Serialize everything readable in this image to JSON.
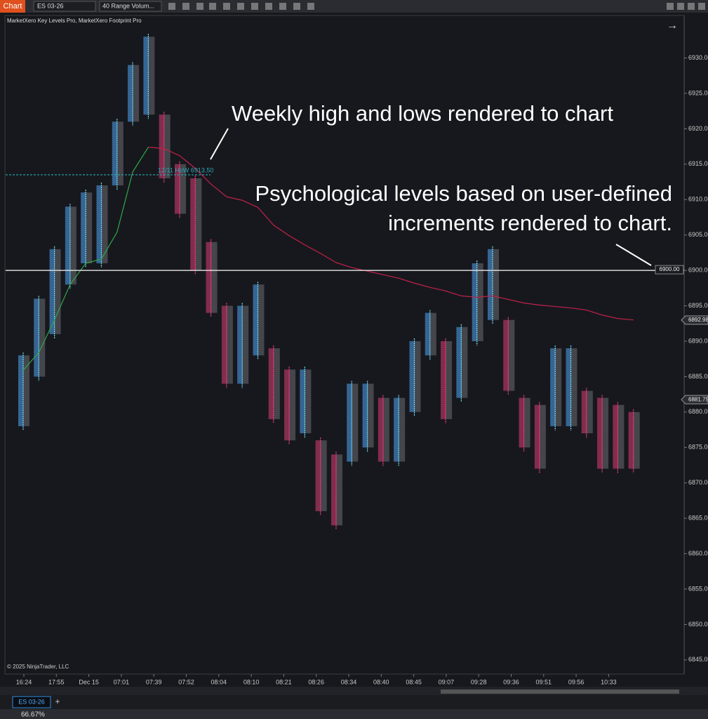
{
  "toolbar": {
    "app_tab": "Chart",
    "instrument": "ES 03-26",
    "bar_type": "40 Range Volum..."
  },
  "indicators": "MarketXero Key Levels Pro, MarketXero Footprint Pro",
  "copyright": "© 2025 NinjaTrader, LLC",
  "bottom_tab": "ES 03-26",
  "status_zoom": "66.67%",
  "chart_data": {
    "type": "footprint",
    "ylim": [
      6843,
      6936
    ],
    "yticks": [
      {
        "value": 6930,
        "label": "6930.00"
      },
      {
        "value": 6925,
        "label": "6925.00"
      },
      {
        "value": 6920,
        "label": "6920.00"
      },
      {
        "value": 6915,
        "label": "6915.00"
      },
      {
        "value": 6910,
        "label": "6910.00"
      },
      {
        "value": 6905,
        "label": "6905.00"
      },
      {
        "value": 6900,
        "label": "6900.00"
      },
      {
        "value": 6895,
        "label": "6895.00"
      },
      {
        "value": 6890,
        "label": "6890.00"
      },
      {
        "value": 6885,
        "label": "6885.00"
      },
      {
        "value": 6880,
        "label": "6880.00"
      },
      {
        "value": 6875,
        "label": "6875.00"
      },
      {
        "value": 6870,
        "label": "6870.00"
      },
      {
        "value": 6865,
        "label": "6865.00"
      },
      {
        "value": 6860,
        "label": "6860.00"
      },
      {
        "value": 6855,
        "label": "6855.00"
      },
      {
        "value": 6850,
        "label": "6850.00"
      },
      {
        "value": 6845,
        "label": "6845.00"
      }
    ],
    "x_tick_labels": [
      "16:24",
      "17:55",
      "Dec 15",
      "07:01",
      "07:39",
      "07:52",
      "08:04",
      "08:10",
      "08:21",
      "08:26",
      "08:34",
      "08:40",
      "08:45",
      "09:07",
      "09:28",
      "09:36",
      "09:51",
      "09:56",
      "10:33"
    ],
    "bars": [
      {
        "high": 6888,
        "low": 6878
      },
      {
        "high": 6896,
        "low": 6885
      },
      {
        "high": 6903,
        "low": 6891
      },
      {
        "high": 6909,
        "low": 6898
      },
      {
        "high": 6911,
        "low": 6901
      },
      {
        "high": 6912,
        "low": 6901
      },
      {
        "high": 6921,
        "low": 6912
      },
      {
        "high": 6929,
        "low": 6921
      },
      {
        "high": 6933,
        "low": 6922
      },
      {
        "high": 6922,
        "low": 6913
      },
      {
        "high": 6915,
        "low": 6908
      },
      {
        "high": 6913,
        "low": 6900
      },
      {
        "high": 6904,
        "low": 6894
      },
      {
        "high": 6895,
        "low": 6884
      },
      {
        "high": 6895,
        "low": 6884
      },
      {
        "high": 6898,
        "low": 6888
      },
      {
        "high": 6889,
        "low": 6879
      },
      {
        "high": 6886,
        "low": 6876
      },
      {
        "high": 6886,
        "low": 6877
      },
      {
        "high": 6876,
        "low": 6866
      },
      {
        "high": 6874,
        "low": 6864
      },
      {
        "high": 6884,
        "low": 6873
      },
      {
        "high": 6884,
        "low": 6875
      },
      {
        "high": 6882,
        "low": 6873
      },
      {
        "high": 6882,
        "low": 6873
      },
      {
        "high": 6890,
        "low": 6880
      },
      {
        "high": 6894,
        "low": 6888
      },
      {
        "high": 6890,
        "low": 6879
      },
      {
        "high": 6892,
        "low": 6882
      },
      {
        "high": 6901,
        "low": 6890
      },
      {
        "high": 6903,
        "low": 6893
      },
      {
        "high": 6893,
        "low": 6883
      },
      {
        "high": 6882,
        "low": 6875
      },
      {
        "high": 6881,
        "low": 6872
      },
      {
        "high": 6889,
        "low": 6878
      },
      {
        "high": 6889,
        "low": 6878
      },
      {
        "high": 6883,
        "low": 6877
      },
      {
        "high": 6882,
        "low": 6872
      },
      {
        "high": 6881,
        "low": 6872
      },
      {
        "high": 6880,
        "low": 6872
      }
    ],
    "series": [
      {
        "color": "#2ea84a",
        "values": [
          6885.9,
          6888.4,
          6893,
          6898,
          6901,
          6901.6,
          6905.4,
          6913.9,
          6917.4,
          null,
          null,
          null,
          null,
          null,
          null,
          null,
          null,
          null,
          null,
          null,
          null,
          null,
          null,
          null,
          null,
          null,
          null,
          null,
          null,
          null,
          null,
          null,
          null,
          null,
          null,
          null,
          null,
          null,
          null,
          null
        ]
      },
      {
        "color": "#c4214a",
        "values": [
          null,
          null,
          null,
          null,
          null,
          null,
          null,
          null,
          6917.4,
          6917.2,
          6916.2,
          6914.4,
          6912.2,
          6910.4,
          6909.9,
          6908.9,
          6906.4,
          6904.9,
          6903.6,
          6902.4,
          6901.1,
          6900.4,
          6899.9,
          6899.4,
          6898.9,
          6898.2,
          6897.6,
          6897.1,
          6896.4,
          6896.2,
          6896.4,
          6895.9,
          6895.4,
          6895.1,
          6894.9,
          6894.7,
          6894.4,
          6893.7,
          6893.2,
          6893
        ]
      }
    ],
    "levels": [
      {
        "value": 6913.5,
        "label": "12/11 HoW 6913.50",
        "color": "#2aa7b5"
      },
      {
        "value": 6900,
        "label": "6900.00",
        "color": "#d8d8d8"
      }
    ],
    "price_markers": [
      {
        "value": 6892.98,
        "label": "6892.98"
      },
      {
        "value": 6881.75,
        "label": "6881.75"
      }
    ],
    "annotations": [
      "Weekly high and lows rendered to chart",
      "Psychological levels based on user-defined",
      "increments rendered to chart."
    ]
  }
}
